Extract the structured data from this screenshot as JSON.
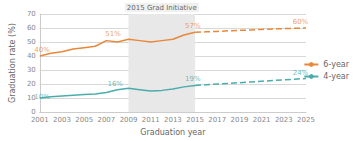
{
  "chart_data": {
    "type": "line",
    "title": "2015 Grad Initiative",
    "xlabel": "Graduation year",
    "ylabel": "Graduation rate (%)",
    "xlim": [
      2001,
      2025
    ],
    "xticks": [
      2001,
      2003,
      2005,
      2007,
      2009,
      2011,
      2013,
      2015,
      2017,
      2019,
      2021,
      2023,
      2025
    ],
    "ylim": [
      0,
      70
    ],
    "yticks": [
      0,
      10,
      20,
      30,
      40,
      50,
      60,
      70
    ],
    "grid": true,
    "legend": "right",
    "shaded_region": {
      "x": [
        2009,
        2015
      ],
      "color": "#e8e8e8"
    },
    "series": [
      {
        "name": "6-year",
        "color": "#e8883a",
        "line_style": "solid",
        "x": [
          2001,
          2002,
          2003,
          2004,
          2005,
          2006,
          2007,
          2008,
          2009,
          2010,
          2011,
          2012,
          2013,
          2014,
          2015
        ],
        "values": [
          40,
          42,
          43,
          45,
          46,
          47,
          51,
          50,
          52,
          51,
          50,
          51,
          52,
          55,
          57
        ]
      },
      {
        "color": "#e8883a",
        "line_style": "dashed",
        "x": [
          2015,
          2016,
          2017,
          2018,
          2019,
          2020,
          2021,
          2022,
          2023,
          2024,
          2025
        ],
        "values": [
          57,
          57.3,
          57.6,
          58.0,
          58.3,
          58.6,
          59.0,
          59.3,
          59.6,
          59.8,
          60
        ]
      },
      {
        "name": "4-year",
        "color": "#4aadab",
        "line_style": "solid",
        "x": [
          2001,
          2002,
          2003,
          2004,
          2005,
          2006,
          2007,
          2008,
          2009,
          2010,
          2011,
          2012,
          2013,
          2014,
          2015
        ],
        "values": [
          10,
          11,
          11.5,
          12,
          12.5,
          13,
          14,
          16,
          17,
          16,
          15,
          15.5,
          16.5,
          18,
          19
        ]
      },
      {
        "color": "#4aadab",
        "line_style": "dashed",
        "x": [
          2015,
          2016,
          2017,
          2018,
          2019,
          2020,
          2021,
          2022,
          2023,
          2024,
          2025
        ],
        "values": [
          19,
          19.5,
          20,
          20.5,
          21,
          21.5,
          22,
          22.5,
          23,
          23.5,
          24
        ]
      }
    ],
    "annotations": [
      {
        "x": 2001.2,
        "y": 42,
        "text": "40%",
        "color": "#e8883a"
      },
      {
        "x": 2007.6,
        "y": 53,
        "text": "51%",
        "color": "#e8883a"
      },
      {
        "x": 2014.8,
        "y": 59,
        "text": "57%",
        "color": "#e8883a"
      },
      {
        "x": 2024.5,
        "y": 61.5,
        "text": "60%",
        "color": "#e8883a"
      },
      {
        "x": 2001.2,
        "y": 8.5,
        "text": "10%",
        "color": "#4aadab"
      },
      {
        "x": 2007.8,
        "y": 17.5,
        "text": "16%",
        "color": "#4aadab"
      },
      {
        "x": 2014.8,
        "y": 21,
        "text": "19%",
        "color": "#4aadab"
      },
      {
        "x": 2024.5,
        "y": 25.5,
        "text": "24%",
        "color": "#4aadab"
      }
    ]
  }
}
